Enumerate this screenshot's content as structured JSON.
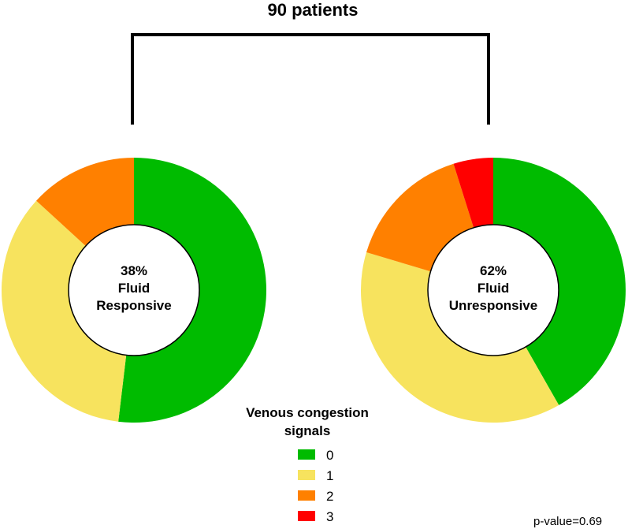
{
  "chart_data": {
    "type": "pie",
    "title": "90 patients",
    "categories": [
      "0",
      "1",
      "2",
      "3"
    ],
    "colors": [
      "#00bb00",
      "#f7e35e",
      "#ff8000",
      "#ff0000"
    ],
    "series": [
      {
        "center_lines": [
          "38%",
          "Fluid",
          "Responsive"
        ],
        "values": [
          55,
          37,
          14,
          0
        ]
      },
      {
        "center_lines": [
          "62%",
          "Fluid",
          "Unresponsive"
        ],
        "values": [
          43,
          39,
          16,
          5
        ]
      }
    ],
    "legend": {
      "title_lines": [
        "Venous congestion",
        "signals"
      ],
      "position": "bottom-center"
    },
    "annotation": "p-value=0.69"
  }
}
